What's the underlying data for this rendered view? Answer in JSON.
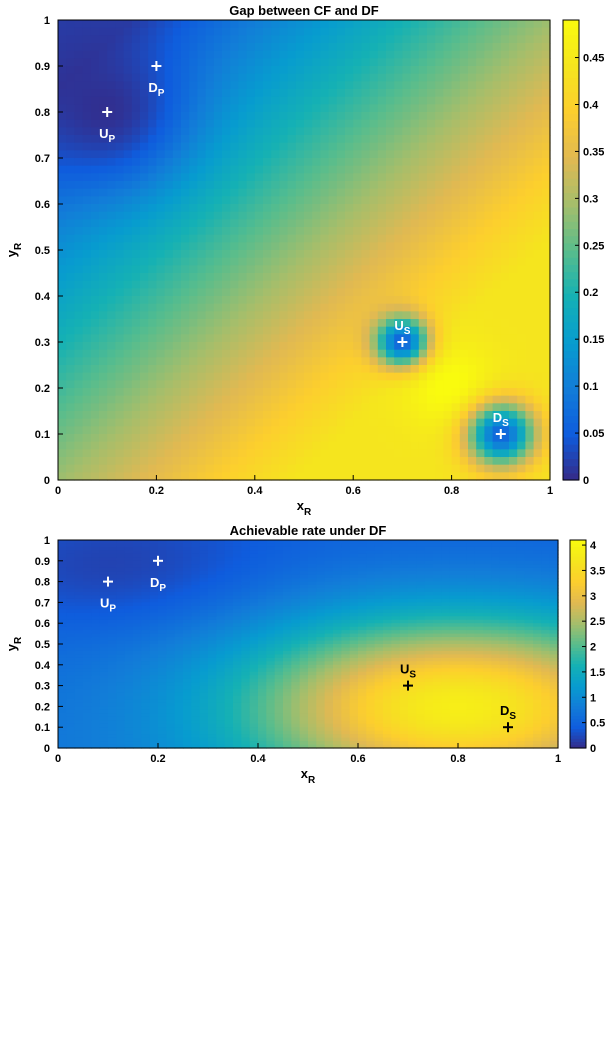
{
  "chart_data": [
    {
      "type": "heatmap",
      "title": "Gap between CF and DF",
      "xlabel": "x",
      "xlabel_sub": "R",
      "ylabel": "y",
      "ylabel_sub": "R",
      "xlim": [
        0,
        1
      ],
      "ylim": [
        0,
        1
      ],
      "xticks": [
        "0",
        "0.2",
        "0.4",
        "0.6",
        "0.8",
        "1"
      ],
      "yticks": [
        "0",
        "0.1",
        "0.2",
        "0.3",
        "0.4",
        "0.5",
        "0.6",
        "0.7",
        "0.8",
        "0.9",
        "1"
      ],
      "colorbar": {
        "range": [
          0,
          0.49
        ],
        "ticks": [
          "0",
          "0.05",
          "0.1",
          "0.15",
          "0.2",
          "0.25",
          "0.3",
          "0.35",
          "0.4",
          "0.45"
        ],
        "colormap": "parula"
      },
      "markers": [
        {
          "label": "U",
          "sub": "P",
          "x": 0.1,
          "y": 0.8,
          "color": "#ffffff",
          "label_pos": "below"
        },
        {
          "label": "D",
          "sub": "P",
          "x": 0.2,
          "y": 0.9,
          "color": "#ffffff",
          "label_pos": "below"
        },
        {
          "label": "U",
          "sub": "S",
          "x": 0.7,
          "y": 0.3,
          "color": "#ffffff",
          "label_pos": "above"
        },
        {
          "label": "D",
          "sub": "S",
          "x": 0.9,
          "y": 0.1,
          "color": "#ffffff",
          "label_pos": "above"
        }
      ],
      "field_model": "gap"
    },
    {
      "type": "heatmap",
      "title": "Achievable rate under DF",
      "xlabel": "x",
      "xlabel_sub": "R",
      "ylabel": "y",
      "ylabel_sub": "R",
      "xlim": [
        0,
        1
      ],
      "ylim": [
        0,
        1
      ],
      "xticks": [
        "0",
        "0.2",
        "0.4",
        "0.6",
        "0.8",
        "1"
      ],
      "yticks": [
        "0",
        "0.1",
        "0.2",
        "0.3",
        "0.4",
        "0.5",
        "0.6",
        "0.7",
        "0.8",
        "0.9",
        "1"
      ],
      "colorbar": {
        "range": [
          0,
          4.1
        ],
        "ticks": [
          "0",
          "0.5",
          "1",
          "1.5",
          "2",
          "2.5",
          "3",
          "3.5",
          "4"
        ],
        "colormap": "parula"
      },
      "markers": [
        {
          "label": "U",
          "sub": "P",
          "x": 0.1,
          "y": 0.8,
          "color": "#ffffff",
          "label_pos": "below"
        },
        {
          "label": "D",
          "sub": "P",
          "x": 0.2,
          "y": 0.9,
          "color": "#ffffff",
          "label_pos": "below"
        },
        {
          "label": "U",
          "sub": "S",
          "x": 0.7,
          "y": 0.3,
          "color": "#000000",
          "label_pos": "above"
        },
        {
          "label": "D",
          "sub": "S",
          "x": 0.9,
          "y": 0.1,
          "color": "#000000",
          "label_pos": "above"
        }
      ],
      "field_model": "rate"
    }
  ]
}
